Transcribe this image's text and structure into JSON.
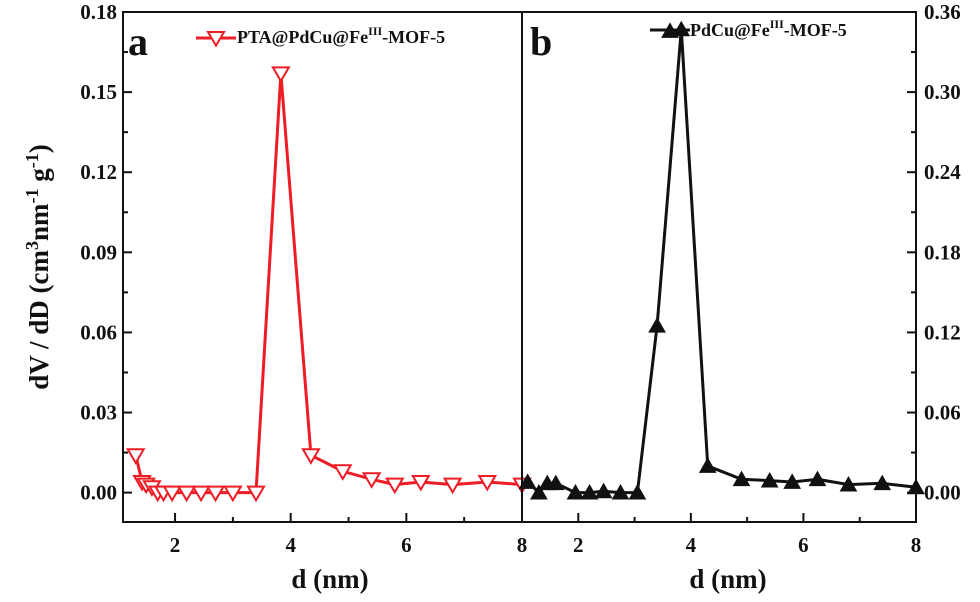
{
  "chart_data": [
    {
      "panel": "a",
      "type": "line",
      "marker": "triangle-down-open",
      "color": "#ee1c25",
      "xlabel": "d (nm)",
      "ylabel": "dV / dD (cm3nm-1 g-1)",
      "xlim": [
        1.1,
        8
      ],
      "ylim": [
        -0.011,
        0.18
      ],
      "x_ticks": [
        2,
        4,
        6,
        8
      ],
      "y_ticks": [
        "0.00",
        "0.03",
        "0.06",
        "0.09",
        "0.12",
        "0.15",
        "0.18"
      ],
      "legend": {
        "name": "PTA@PdCu@Fe",
        "sup": "III",
        "suffix": "-MOF-5",
        "position": "top-right"
      },
      "series": [
        {
          "name": "PTA@PdCu@FeIII-MOF-5",
          "x": [
            1.32,
            1.43,
            1.5,
            1.6,
            1.7,
            1.8,
            1.95,
            2.2,
            2.45,
            2.7,
            3.0,
            3.4,
            3.83,
            4.35,
            4.9,
            5.4,
            5.8,
            6.25,
            6.8,
            7.4,
            8.0
          ],
          "y": [
            0.014,
            0.004,
            0.003,
            0.002,
            0.0,
            0.0,
            0.0,
            0.0,
            0.0,
            0.0,
            0.0,
            0.0,
            0.157,
            0.014,
            0.008,
            0.005,
            0.003,
            0.004,
            0.003,
            0.004,
            0.003
          ]
        }
      ]
    },
    {
      "panel": "b",
      "type": "line",
      "marker": "triangle-up-filled",
      "color": "#111111",
      "xlabel": "d (nm)",
      "ylabel": "",
      "xlim": [
        1.0,
        8
      ],
      "ylim": [
        -0.022,
        0.36
      ],
      "x_ticks": [
        2,
        4,
        6,
        8
      ],
      "y_ticks": [
        "0.00",
        "0.06",
        "0.12",
        "0.18",
        "0.24",
        "0.30",
        "0.36"
      ],
      "legend": {
        "name": "PdCu@Fe",
        "sup": "III",
        "suffix": "-MOF-5",
        "position": "top-right"
      },
      "series": [
        {
          "name": "PdCu@FeIII-MOF-5",
          "x": [
            1.1,
            1.3,
            1.45,
            1.6,
            1.95,
            2.2,
            2.45,
            2.75,
            3.05,
            3.4,
            3.83,
            4.3,
            4.9,
            5.4,
            5.8,
            6.25,
            6.8,
            7.4,
            8.0
          ],
          "y": [
            0.008,
            0.0,
            0.007,
            0.007,
            0.0,
            0.0,
            0.001,
            0.0,
            0.0,
            0.125,
            0.347,
            0.02,
            0.01,
            0.009,
            0.008,
            0.01,
            0.006,
            0.007,
            0.004
          ]
        }
      ]
    }
  ]
}
